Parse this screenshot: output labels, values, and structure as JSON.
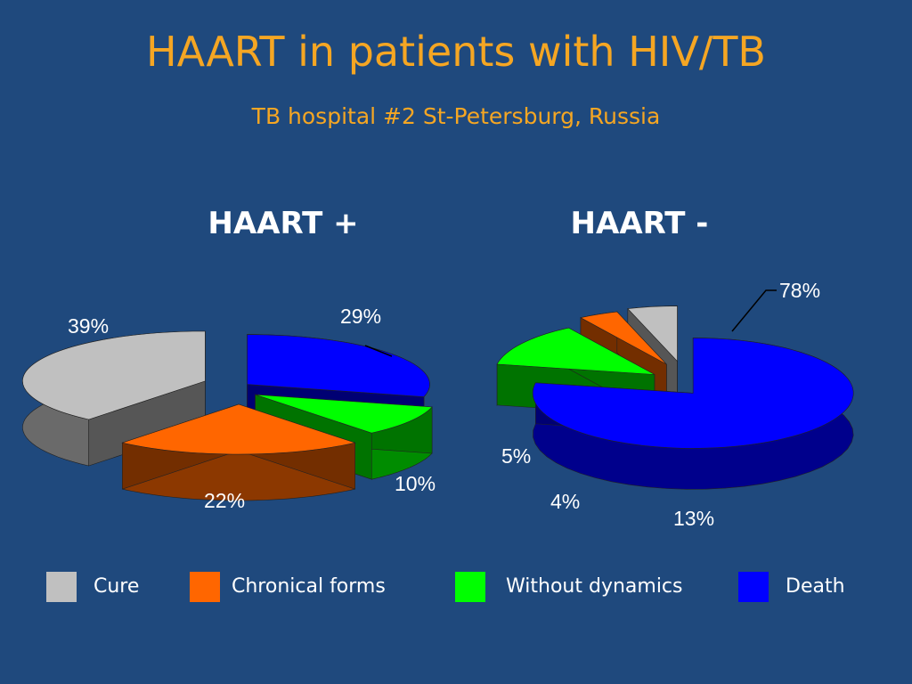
{
  "title": "HAART in patients with HIV/TB",
  "subtitle": "TB hospital #2 St-Petersburg, Russia",
  "colors": {
    "cure": "#c0c0c0",
    "chronical": "#ff6600",
    "without": "#00ff00",
    "death": "#0000ff",
    "background": "#1f497d",
    "title": "#f5a623"
  },
  "legend": [
    {
      "label": "Cure",
      "color": "#c0c0c0"
    },
    {
      "label": "Chronical forms",
      "color": "#ff6600"
    },
    {
      "label": "Without dynamics",
      "color": "#00ff00"
    },
    {
      "label": "Death",
      "color": "#0000ff"
    }
  ],
  "chart_data": [
    {
      "type": "pie",
      "title": "HAART +",
      "categories": [
        "Cure",
        "Chronical forms",
        "Without dynamics",
        "Death"
      ],
      "values": [
        39,
        22,
        10,
        29
      ],
      "labels": [
        "39%",
        "22%",
        "10%",
        "29%"
      ]
    },
    {
      "type": "pie",
      "title": "HAART -",
      "categories": [
        "Cure",
        "Chronical forms",
        "Without dynamics",
        "Death"
      ],
      "values": [
        5,
        4,
        13,
        78
      ],
      "labels": [
        "5%",
        "4%",
        "13%",
        "78%"
      ]
    }
  ]
}
